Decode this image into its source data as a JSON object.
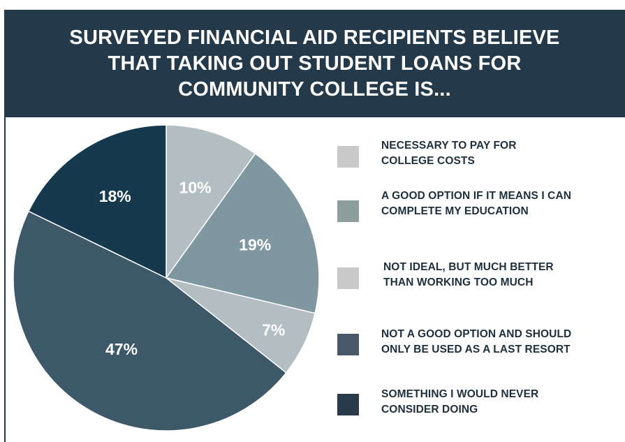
{
  "header": {
    "title_lines": [
      "SURVEYED FINANCIAL AID RECIPIENTS BELIEVE",
      "THAT TAKING OUT STUDENT LOANS FOR",
      "COMMUNITY COLLEGE  IS..."
    ]
  },
  "chart_data": {
    "type": "pie",
    "title": "SURVEYED FINANCIAL AID RECIPIENTS BELIEVE THAT TAKING OUT STUDENT LOANS FOR COMMUNITY COLLEGE  IS...",
    "categories": [
      "NECESSARY TO PAY FOR COLLEGE COSTS",
      "A GOOD OPTION IF IT MEANS I CAN COMPLETE MY EDUCATION",
      "NOT IDEAL, BUT MUCH BETTER THAN WORKING TOO MUCH",
      "NOT A GOOD OPTION AND SHOULD ONLY BE USED AS A LAST RESORT",
      "SOMETHING I WOULD NEVER CONSIDER DOING"
    ],
    "values": [
      10,
      19,
      7,
      47,
      18
    ],
    "labels": [
      "10%",
      "19%",
      "7%",
      "47%",
      "18%"
    ],
    "colors": [
      "#b2bec2",
      "#7e97a0",
      "#b2bec2",
      "#3d5868",
      "#17394d"
    ],
    "legend_colors": [
      "#c9c9c9",
      "#8e9e9c",
      "#c9c9c9",
      "#485868",
      "#293b4b"
    ],
    "legend_placement": "right"
  },
  "legend": {
    "items": [
      {
        "lines": [
          "NECESSARY TO PAY FOR",
          "COLLEGE COSTS"
        ]
      },
      {
        "lines": [
          "A GOOD OPTION IF IT MEANS I CAN",
          "COMPLETE MY EDUCATION"
        ]
      },
      {
        "lines": [
          "NOT IDEAL, BUT MUCH BETTER",
          "THAN WORKING TOO MUCH"
        ]
      },
      {
        "lines": [
          "NOT A GOOD OPTION AND SHOULD",
          "ONLY BE USED AS A LAST RESORT"
        ]
      },
      {
        "lines": [
          "SOMETHING I WOULD NEVER",
          "CONSIDER DOING"
        ]
      }
    ]
  }
}
